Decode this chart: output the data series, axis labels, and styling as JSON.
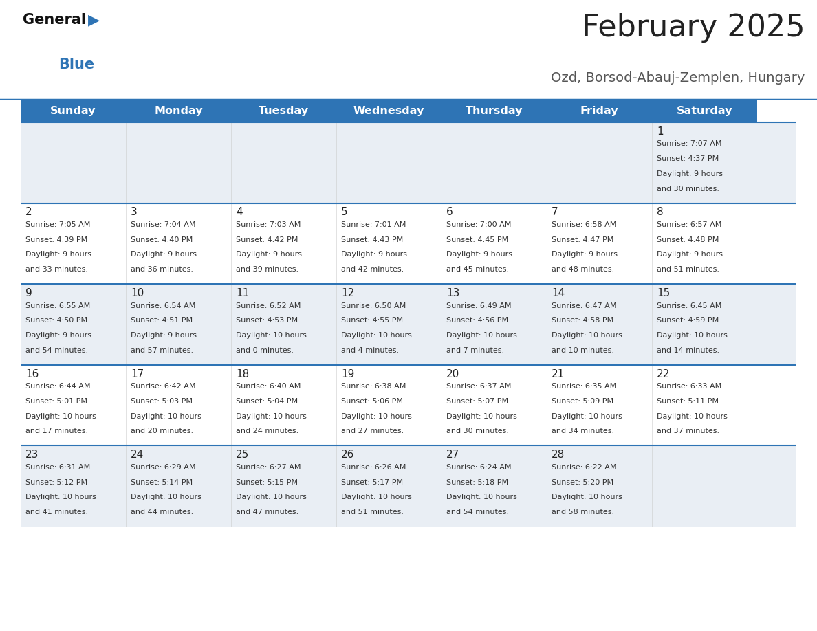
{
  "title": "February 2025",
  "subtitle": "Ozd, Borsod-Abauj-Zemplen, Hungary",
  "header_bg": "#2E74B5",
  "header_text_color": "#FFFFFF",
  "days_of_week": [
    "Sunday",
    "Monday",
    "Tuesday",
    "Wednesday",
    "Thursday",
    "Friday",
    "Saturday"
  ],
  "cell_bg_light": "#E9EEF4",
  "cell_bg_white": "#FFFFFF",
  "separator_color": "#2E74B5",
  "day_number_color": "#222222",
  "info_text_color": "#333333",
  "title_color": "#222222",
  "subtitle_color": "#555555",
  "logo_general_color": "#111111",
  "logo_blue_color": "#2E74B5",
  "calendar": [
    [
      null,
      null,
      null,
      null,
      null,
      null,
      {
        "day": "1",
        "sunrise": "7:07 AM",
        "sunset": "4:37 PM",
        "daylight1": "9 hours",
        "daylight2": "and 30 minutes."
      }
    ],
    [
      {
        "day": "2",
        "sunrise": "7:05 AM",
        "sunset": "4:39 PM",
        "daylight1": "9 hours",
        "daylight2": "and 33 minutes."
      },
      {
        "day": "3",
        "sunrise": "7:04 AM",
        "sunset": "4:40 PM",
        "daylight1": "9 hours",
        "daylight2": "and 36 minutes."
      },
      {
        "day": "4",
        "sunrise": "7:03 AM",
        "sunset": "4:42 PM",
        "daylight1": "9 hours",
        "daylight2": "and 39 minutes."
      },
      {
        "day": "5",
        "sunrise": "7:01 AM",
        "sunset": "4:43 PM",
        "daylight1": "9 hours",
        "daylight2": "and 42 minutes."
      },
      {
        "day": "6",
        "sunrise": "7:00 AM",
        "sunset": "4:45 PM",
        "daylight1": "9 hours",
        "daylight2": "and 45 minutes."
      },
      {
        "day": "7",
        "sunrise": "6:58 AM",
        "sunset": "4:47 PM",
        "daylight1": "9 hours",
        "daylight2": "and 48 minutes."
      },
      {
        "day": "8",
        "sunrise": "6:57 AM",
        "sunset": "4:48 PM",
        "daylight1": "9 hours",
        "daylight2": "and 51 minutes."
      }
    ],
    [
      {
        "day": "9",
        "sunrise": "6:55 AM",
        "sunset": "4:50 PM",
        "daylight1": "9 hours",
        "daylight2": "and 54 minutes."
      },
      {
        "day": "10",
        "sunrise": "6:54 AM",
        "sunset": "4:51 PM",
        "daylight1": "9 hours",
        "daylight2": "and 57 minutes."
      },
      {
        "day": "11",
        "sunrise": "6:52 AM",
        "sunset": "4:53 PM",
        "daylight1": "10 hours",
        "daylight2": "and 0 minutes."
      },
      {
        "day": "12",
        "sunrise": "6:50 AM",
        "sunset": "4:55 PM",
        "daylight1": "10 hours",
        "daylight2": "and 4 minutes."
      },
      {
        "day": "13",
        "sunrise": "6:49 AM",
        "sunset": "4:56 PM",
        "daylight1": "10 hours",
        "daylight2": "and 7 minutes."
      },
      {
        "day": "14",
        "sunrise": "6:47 AM",
        "sunset": "4:58 PM",
        "daylight1": "10 hours",
        "daylight2": "and 10 minutes."
      },
      {
        "day": "15",
        "sunrise": "6:45 AM",
        "sunset": "4:59 PM",
        "daylight1": "10 hours",
        "daylight2": "and 14 minutes."
      }
    ],
    [
      {
        "day": "16",
        "sunrise": "6:44 AM",
        "sunset": "5:01 PM",
        "daylight1": "10 hours",
        "daylight2": "and 17 minutes."
      },
      {
        "day": "17",
        "sunrise": "6:42 AM",
        "sunset": "5:03 PM",
        "daylight1": "10 hours",
        "daylight2": "and 20 minutes."
      },
      {
        "day": "18",
        "sunrise": "6:40 AM",
        "sunset": "5:04 PM",
        "daylight1": "10 hours",
        "daylight2": "and 24 minutes."
      },
      {
        "day": "19",
        "sunrise": "6:38 AM",
        "sunset": "5:06 PM",
        "daylight1": "10 hours",
        "daylight2": "and 27 minutes."
      },
      {
        "day": "20",
        "sunrise": "6:37 AM",
        "sunset": "5:07 PM",
        "daylight1": "10 hours",
        "daylight2": "and 30 minutes."
      },
      {
        "day": "21",
        "sunrise": "6:35 AM",
        "sunset": "5:09 PM",
        "daylight1": "10 hours",
        "daylight2": "and 34 minutes."
      },
      {
        "day": "22",
        "sunrise": "6:33 AM",
        "sunset": "5:11 PM",
        "daylight1": "10 hours",
        "daylight2": "and 37 minutes."
      }
    ],
    [
      {
        "day": "23",
        "sunrise": "6:31 AM",
        "sunset": "5:12 PM",
        "daylight1": "10 hours",
        "daylight2": "and 41 minutes."
      },
      {
        "day": "24",
        "sunrise": "6:29 AM",
        "sunset": "5:14 PM",
        "daylight1": "10 hours",
        "daylight2": "and 44 minutes."
      },
      {
        "day": "25",
        "sunrise": "6:27 AM",
        "sunset": "5:15 PM",
        "daylight1": "10 hours",
        "daylight2": "and 47 minutes."
      },
      {
        "day": "26",
        "sunrise": "6:26 AM",
        "sunset": "5:17 PM",
        "daylight1": "10 hours",
        "daylight2": "and 51 minutes."
      },
      {
        "day": "27",
        "sunrise": "6:24 AM",
        "sunset": "5:18 PM",
        "daylight1": "10 hours",
        "daylight2": "and 54 minutes."
      },
      {
        "day": "28",
        "sunrise": "6:22 AM",
        "sunset": "5:20 PM",
        "daylight1": "10 hours",
        "daylight2": "and 58 minutes."
      },
      null
    ]
  ]
}
